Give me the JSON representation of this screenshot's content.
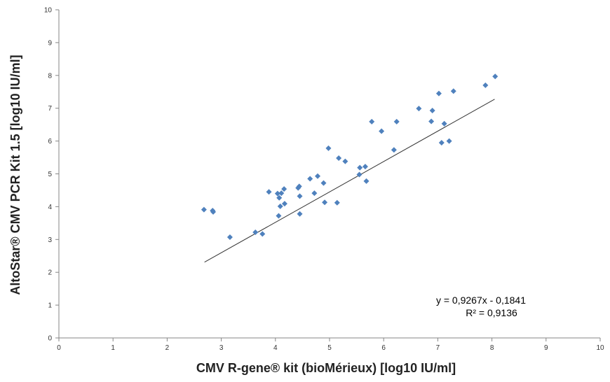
{
  "chart_data": {
    "type": "scatter",
    "xlabel": "CMV R-gene® kit (bioMérieux) [log10 IU/ml]",
    "ylabel": "AltoStar® CMV PCR Kit 1.5 [log10 IU/ml]",
    "xlim": [
      0,
      10
    ],
    "ylim": [
      0,
      10
    ],
    "x_ticks": [
      "0",
      "1",
      "2",
      "3",
      "4",
      "5",
      "6",
      "7",
      "8",
      "9",
      "10"
    ],
    "y_ticks": [
      "0",
      "1",
      "2",
      "3",
      "4",
      "5",
      "6",
      "7",
      "8",
      "9",
      "10"
    ],
    "grid": false,
    "marker_color": "#4f81bd",
    "trendline": {
      "slope": 0.9267,
      "intercept": -0.1841,
      "x_range": [
        2.69,
        8.05
      ],
      "color": "#333333",
      "equation_label": "y = 0,9267x - 0,1841",
      "r2_label": "R² = 0,9136"
    },
    "series": [
      {
        "points": [
          {
            "x": 2.68,
            "y": 3.91
          },
          {
            "x": 2.84,
            "y": 3.88
          },
          {
            "x": 2.85,
            "y": 3.84
          },
          {
            "x": 3.16,
            "y": 3.07
          },
          {
            "x": 3.63,
            "y": 3.22
          },
          {
            "x": 3.76,
            "y": 3.17
          },
          {
            "x": 3.88,
            "y": 4.45
          },
          {
            "x": 4.04,
            "y": 4.4
          },
          {
            "x": 4.06,
            "y": 3.72
          },
          {
            "x": 4.07,
            "y": 4.27
          },
          {
            "x": 4.09,
            "y": 4.01
          },
          {
            "x": 4.11,
            "y": 4.41
          },
          {
            "x": 4.16,
            "y": 4.54
          },
          {
            "x": 4.17,
            "y": 4.09
          },
          {
            "x": 4.42,
            "y": 4.57
          },
          {
            "x": 4.44,
            "y": 4.62
          },
          {
            "x": 4.45,
            "y": 4.32
          },
          {
            "x": 4.45,
            "y": 3.78
          },
          {
            "x": 4.64,
            "y": 4.85
          },
          {
            "x": 4.72,
            "y": 4.41
          },
          {
            "x": 4.78,
            "y": 4.93
          },
          {
            "x": 4.89,
            "y": 4.72
          },
          {
            "x": 4.91,
            "y": 4.13
          },
          {
            "x": 4.98,
            "y": 5.78
          },
          {
            "x": 5.14,
            "y": 4.12
          },
          {
            "x": 5.17,
            "y": 5.48
          },
          {
            "x": 5.29,
            "y": 5.38
          },
          {
            "x": 5.55,
            "y": 4.98
          },
          {
            "x": 5.56,
            "y": 5.19
          },
          {
            "x": 5.66,
            "y": 5.22
          },
          {
            "x": 5.68,
            "y": 4.78
          },
          {
            "x": 5.78,
            "y": 6.59
          },
          {
            "x": 5.96,
            "y": 6.3
          },
          {
            "x": 6.19,
            "y": 5.73
          },
          {
            "x": 6.24,
            "y": 6.59
          },
          {
            "x": 6.65,
            "y": 6.99
          },
          {
            "x": 6.88,
            "y": 6.6
          },
          {
            "x": 6.9,
            "y": 6.93
          },
          {
            "x": 7.02,
            "y": 7.45
          },
          {
            "x": 7.07,
            "y": 5.95
          },
          {
            "x": 7.12,
            "y": 6.53
          },
          {
            "x": 7.21,
            "y": 6.0
          },
          {
            "x": 7.29,
            "y": 7.52
          },
          {
            "x": 7.88,
            "y": 7.7
          },
          {
            "x": 8.06,
            "y": 7.97
          }
        ]
      }
    ]
  }
}
